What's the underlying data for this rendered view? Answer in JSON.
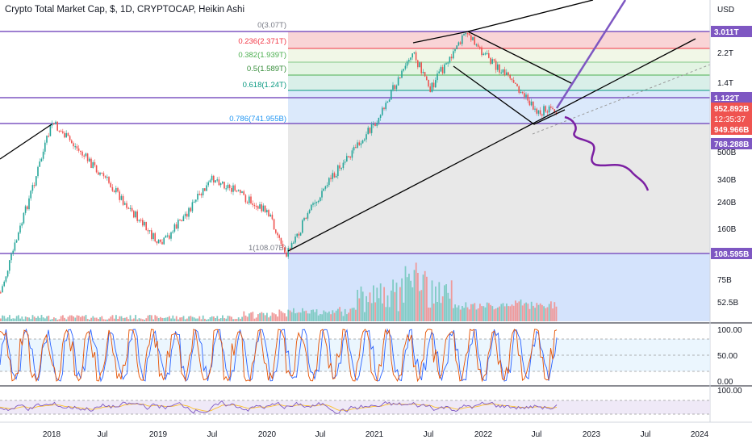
{
  "header": {
    "title": "Crypto Total Market Cap, $, 1D, CRYPTOCAP, Heikin Ashi"
  },
  "colors": {
    "accent_purple": "#7e57c2",
    "fib_red": "#f7c5c8",
    "fib_green": "#d7f2de",
    "fib_blue": "#dbe9fb",
    "fib_gray": "#e6e6e6",
    "volume_bg": "#cfe0fc",
    "candle_up": "#26a69a",
    "candle_down": "#ef5350",
    "price_red": "#ef5350",
    "price_purple": "#7e57c2",
    "stoch_k": "#e65100",
    "stoch_d": "#2962ff",
    "rsi_line": "#7e57c2",
    "rsi_sig": "#fbc02d"
  },
  "price_axis": {
    "unit_label": "USD",
    "ticks": [
      "2.2T",
      "1.4T",
      "500B",
      "340B",
      "240B",
      "160B",
      "75B",
      "52.5B"
    ],
    "badges": [
      {
        "label": "3.011T",
        "color": "#7e57c2"
      },
      {
        "label": "1.122T",
        "color": "#7e57c2"
      },
      {
        "label": "952.892B",
        "color": "#ef5350"
      },
      {
        "label": "12:35:37",
        "color": "#ef5350"
      },
      {
        "label": "949.966B",
        "color": "#ef5350"
      },
      {
        "label": "768.288B",
        "color": "#7e57c2"
      },
      {
        "label": "108.595B",
        "color": "#7e57c2"
      }
    ]
  },
  "fib_labels": [
    {
      "text": "0(3.07T)",
      "color": "#787b86"
    },
    {
      "text": "0.236(2.371T)",
      "color": "#f23645"
    },
    {
      "text": "0.382(1.939T)",
      "color": "#4caf50"
    },
    {
      "text": "0.5(1.589T)",
      "color": "#388e3c"
    },
    {
      "text": "0.618(1.24T)",
      "color": "#089981"
    },
    {
      "text": "0.786(741.955B)",
      "color": "#2196f3"
    },
    {
      "text": "1(108.07B)",
      "color": "#787b86"
    }
  ],
  "stoch_axis": [
    "100.00",
    "50.00",
    "0.00"
  ],
  "rsi_axis": [
    "100.00"
  ],
  "time_axis": [
    "2018",
    "Jul",
    "2019",
    "Jul",
    "2020",
    "Jul",
    "2021",
    "Jul",
    "2022",
    "Jul",
    "2023",
    "Jul",
    "2024"
  ],
  "chart_data": {
    "type": "line",
    "title": "Crypto Total Market Cap, $, 1D, CRYPTOCAP, Heikin Ashi",
    "scale": "log",
    "y_unit": "USD",
    "x": [
      "2018-01",
      "2018-07",
      "2019-01",
      "2019-07",
      "2020-01",
      "2020-03",
      "2020-07",
      "2021-01",
      "2021-05",
      "2021-07",
      "2021-11",
      "2022-01",
      "2022-05",
      "2022-07",
      "2022-08"
    ],
    "series": [
      {
        "values": [
          780,
          330,
          120,
          340,
          200,
          108,
          280,
          800,
          2300,
          1300,
          3000,
          2200,
          1250,
          900,
          950
        ]
      }
    ],
    "fib_levels": [
      0,
      0.236,
      0.382,
      0.5,
      0.618,
      0.786,
      1
    ],
    "fib_prices": [
      "3.07T",
      "2.371T",
      "1.939T",
      "1.589T",
      "1.24T",
      "741.955B",
      "108.07B"
    ],
    "horizontal_levels": [
      "3.011T",
      "1.122T",
      "768.288B",
      "108.595B"
    ],
    "last_price": "952.892B",
    "indicators": [
      "Volume",
      "Stochastic",
      "RSI"
    ],
    "grid": true
  }
}
